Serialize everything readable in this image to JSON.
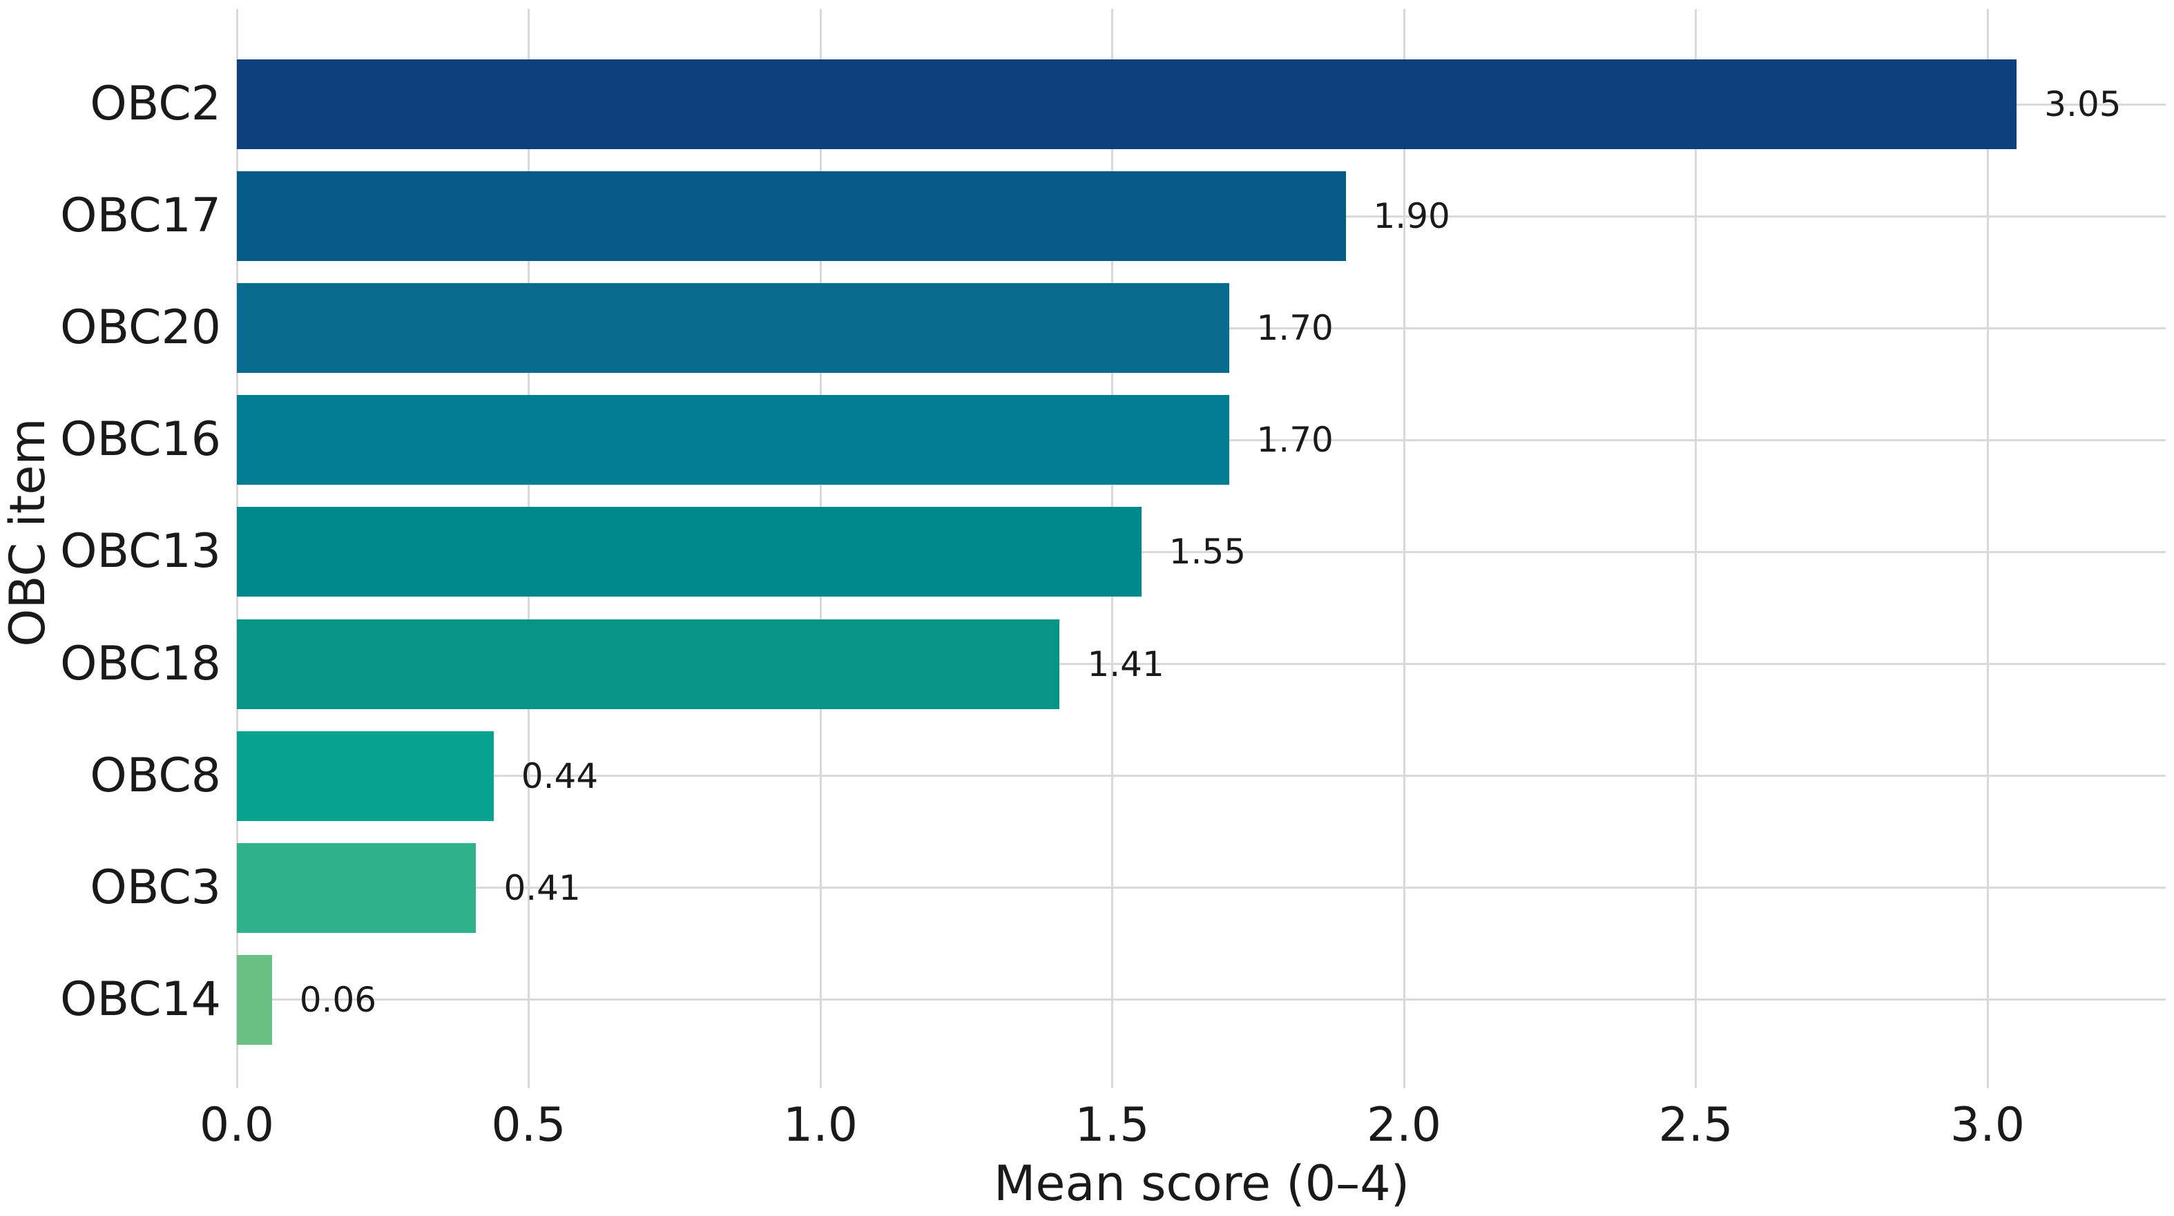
{
  "chart_data": {
    "type": "bar",
    "orientation": "horizontal",
    "title": "",
    "xlabel": "Mean score (0–4)",
    "ylabel": "OBC item",
    "categories": [
      "OBC2",
      "OBC17",
      "OBC20",
      "OBC16",
      "OBC13",
      "OBC18",
      "OBC8",
      "OBC3",
      "OBC14"
    ],
    "values": [
      3.05,
      1.9,
      1.7,
      1.7,
      1.55,
      1.41,
      0.44,
      0.41,
      0.06
    ],
    "value_labels": [
      "3.05",
      "1.90",
      "1.70",
      "1.70",
      "1.55",
      "1.41",
      "0.44",
      "0.41",
      "0.06"
    ],
    "bar_colors": [
      "#0d407c",
      "#065a88",
      "#096b8f",
      "#037d93",
      "#00898d",
      "#099488",
      "#07a390",
      "#2fb18c",
      "#68c083"
    ],
    "xlim": [
      0,
      3.32
    ],
    "xticks": {
      "values": [
        0,
        0.5,
        1.0,
        1.5,
        2.0,
        2.5,
        3.0
      ],
      "labels": [
        "0.0",
        "0.5",
        "1.0",
        "1.5",
        "2.0",
        "2.5",
        "3.0"
      ]
    },
    "grid": true,
    "legend": false,
    "background_color": "#ffffff",
    "grid_color": "#d9d9d9",
    "text_color": "#1a1a1a"
  }
}
